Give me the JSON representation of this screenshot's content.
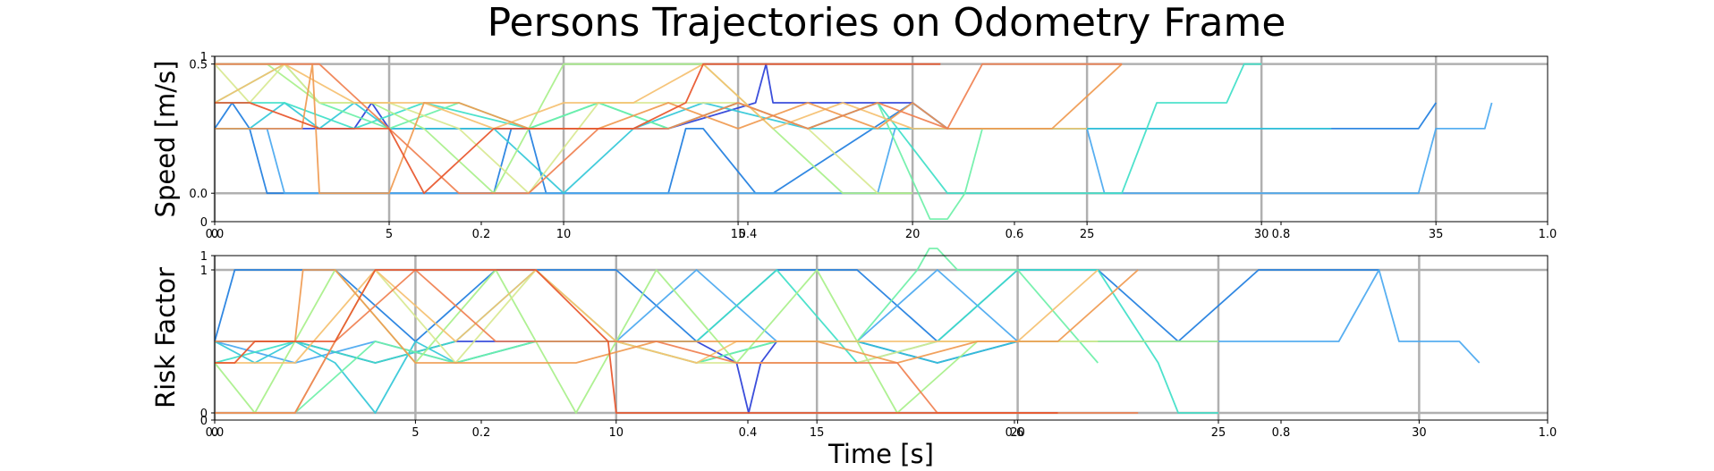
{
  "suptitle": "Persons Trajectories on Odometry Frame",
  "chart_data": [
    {
      "type": "line",
      "ylabel": "Speed [m/s]",
      "xlabel": "",
      "grid": true,
      "x_ticks": [
        "0",
        "5",
        "10",
        "15",
        "20",
        "25",
        "30",
        "35"
      ],
      "y_ticks": [
        "0.0",
        "0.5"
      ],
      "x_range": [
        0,
        38.2
      ],
      "y_range": [
        -0.11,
        0.53
      ],
      "twin_x_ticks": [
        "0.0",
        "0.2",
        "0.4",
        "0.6",
        "0.8",
        "1.0"
      ],
      "twin_y_ticks": [
        "0",
        "1"
      ],
      "series": [
        {
          "color": "#1f7ee0",
          "x": [
            0,
            0.5,
            1,
            1.5,
            2,
            8,
            8.5,
            9,
            9.5,
            13,
            13.5,
            14,
            15.5,
            16,
            20,
            21,
            24,
            24.5,
            25,
            34.5,
            35
          ],
          "y": [
            0.25,
            0.35,
            0.25,
            0,
            0,
            0,
            0.25,
            0.25,
            0,
            0,
            0.25,
            0.25,
            0,
            0,
            0.35,
            0.25,
            0.25,
            0.25,
            0.25,
            0.25,
            0.35
          ]
        },
        {
          "color": "#4aa8f0",
          "x": [
            0,
            1.5,
            2,
            3,
            3.5,
            10,
            10.5,
            19,
            19.5,
            20,
            25,
            25.5,
            26,
            27,
            28,
            30,
            34.5,
            35,
            36,
            36.4,
            36.6
          ],
          "y": [
            0.25,
            0.25,
            0,
            0,
            0,
            0,
            0,
            0,
            0.25,
            0.25,
            0.25,
            0,
            0,
            0,
            0,
            0,
            0,
            0.25,
            0.25,
            0.25,
            0.35
          ]
        },
        {
          "color": "#2a3fd8",
          "x": [
            0,
            4,
            4.5,
            5,
            7,
            8.5,
            9,
            13,
            15.5,
            15.8,
            16,
            20,
            21,
            22
          ],
          "y": [
            0.25,
            0.25,
            0.35,
            0.25,
            0.25,
            0.25,
            0.25,
            0.25,
            0.35,
            0.5,
            0.35,
            0.35,
            0.25,
            0.25
          ]
        },
        {
          "color": "#33c8d8",
          "x": [
            0,
            1,
            2,
            3,
            4,
            5,
            8,
            10,
            12,
            14,
            17,
            20,
            23,
            26,
            29,
            30,
            32
          ],
          "y": [
            0.25,
            0.25,
            0.35,
            0.25,
            0.35,
            0.25,
            0.25,
            0,
            0.25,
            0.35,
            0.25,
            0.25,
            0.25,
            0.25,
            0.25,
            0.25,
            0.25
          ]
        },
        {
          "color": "#3fe0c8",
          "x": [
            0,
            2,
            4,
            6,
            9,
            11,
            13,
            15,
            17,
            19,
            21,
            23,
            26,
            27,
            29,
            29.5,
            30
          ],
          "y": [
            0.35,
            0.35,
            0.25,
            0.35,
            0.25,
            0.35,
            0.25,
            0.35,
            0.25,
            0.35,
            0,
            0,
            0,
            0.35,
            0.35,
            0.5,
            0.5
          ]
        },
        {
          "color": "#6ef0a8",
          "x": [
            0,
            2,
            3,
            5,
            7,
            9,
            11,
            13,
            15,
            17,
            19,
            20.5,
            21,
            21.5,
            22,
            25
          ],
          "y": [
            0.35,
            0.5,
            0.35,
            0.25,
            0.35,
            0.25,
            0.35,
            0.25,
            0.35,
            0.25,
            0.35,
            -0.1,
            -0.1,
            0,
            0.25,
            0.25
          ]
        },
        {
          "color": "#a8f08a",
          "x": [
            0,
            1.5,
            3,
            4.5,
            6,
            8,
            10,
            12,
            14,
            16,
            18,
            20
          ],
          "y": [
            0.5,
            0.5,
            0.35,
            0.35,
            0.25,
            0,
            0.5,
            0.5,
            0.5,
            0.25,
            0,
            0
          ]
        },
        {
          "color": "#d8e890",
          "x": [
            0,
            1,
            2,
            3,
            5,
            7,
            9,
            11,
            13,
            15,
            17,
            19
          ],
          "y": [
            0.5,
            0.35,
            0.5,
            0.35,
            0.35,
            0.25,
            0,
            0.35,
            0.35,
            0.35,
            0.25,
            0
          ]
        },
        {
          "color": "#f5c070",
          "x": [
            0,
            2,
            4,
            6,
            8,
            10,
            12,
            14,
            16,
            18,
            20,
            22,
            25
          ],
          "y": [
            0.35,
            0.5,
            0.35,
            0.35,
            0.25,
            0.35,
            0.35,
            0.5,
            0.25,
            0.35,
            0.25,
            0.25,
            0.25
          ]
        },
        {
          "color": "#f09a50",
          "x": [
            0,
            2.5,
            2.8,
            3,
            5,
            6,
            7,
            9,
            11,
            13,
            15,
            17,
            19,
            20,
            21,
            24,
            26
          ],
          "y": [
            0.25,
            0.25,
            0.5,
            0,
            0,
            0.35,
            0.35,
            0.25,
            0.25,
            0.35,
            0.25,
            0.35,
            0.25,
            0.35,
            0.25,
            0.25,
            0.5
          ]
        },
        {
          "color": "#f08050",
          "x": [
            0,
            3,
            5,
            7,
            9,
            11,
            13,
            15,
            17,
            19,
            21,
            22,
            24,
            26
          ],
          "y": [
            0.5,
            0.5,
            0.25,
            0,
            0,
            0.25,
            0.25,
            0.35,
            0.25,
            0.35,
            0.25,
            0.5,
            0.5,
            0.5
          ]
        },
        {
          "color": "#e8552a",
          "x": [
            0,
            1,
            3,
            4.5,
            5,
            6,
            8,
            10,
            12,
            13.5,
            14,
            16,
            18,
            20,
            20.8
          ],
          "y": [
            0.35,
            0.35,
            0.25,
            0.25,
            0.25,
            0,
            0.25,
            0.25,
            0.25,
            0.35,
            0.5,
            0.5,
            0.5,
            0.5,
            0.5
          ]
        }
      ]
    },
    {
      "type": "line",
      "ylabel": "Risk Factor",
      "xlabel": "Time [s]",
      "grid": true,
      "x_ticks": [
        "0",
        "5",
        "10",
        "15",
        "20",
        "25",
        "30"
      ],
      "y_ticks": [
        "0",
        "1"
      ],
      "x_range": [
        0,
        33.2
      ],
      "y_range": [
        -0.05,
        1.1
      ],
      "twin_x_ticks": [
        "0.0",
        "0.2",
        "0.4",
        "0.6",
        "0.8",
        "1.0"
      ],
      "twin_y_ticks": [
        "0",
        "1"
      ],
      "series": [
        {
          "color": "#1f7ee0",
          "x": [
            0,
            0.5,
            1,
            3,
            5,
            7,
            10,
            12,
            14,
            16,
            18,
            20,
            22,
            24,
            26,
            28,
            29
          ],
          "y": [
            0.5,
            1,
            1,
            1,
            0.5,
            1,
            1,
            0.5,
            1,
            1,
            0.5,
            1,
            1,
            0.5,
            1,
            1,
            1
          ]
        },
        {
          "color": "#4aa8f0",
          "x": [
            0,
            2,
            4,
            6,
            8,
            10,
            12,
            14,
            16,
            18,
            20,
            22,
            24,
            26,
            28,
            29,
            29.5,
            30,
            31,
            31.5
          ],
          "y": [
            0.5,
            0.35,
            0.5,
            0.35,
            0.5,
            0.5,
            1,
            0.5,
            0.5,
            1,
            0.5,
            0.5,
            0.5,
            0.5,
            0.5,
            1,
            0.5,
            0.5,
            0.5,
            0.35
          ]
        },
        {
          "color": "#2a3fd8",
          "x": [
            0,
            2,
            4,
            6,
            8,
            10,
            12,
            13,
            13.3,
            13.6,
            14,
            16,
            18,
            20
          ],
          "y": [
            0.5,
            0.5,
            0.35,
            0.5,
            0.5,
            0.5,
            0.5,
            0.35,
            0,
            0.35,
            0.5,
            0.5,
            0.35,
            0.5
          ]
        },
        {
          "color": "#33c8d8",
          "x": [
            0,
            1,
            2,
            3,
            4,
            5,
            6,
            8,
            10,
            12,
            14,
            16,
            18,
            20,
            22
          ],
          "y": [
            0.5,
            0.35,
            0.5,
            0.35,
            0,
            0.5,
            0.35,
            0.5,
            0.5,
            0.35,
            0.5,
            0.5,
            0.35,
            0.5,
            0.5
          ]
        },
        {
          "color": "#3fe0c8",
          "x": [
            0,
            2,
            4,
            6,
            8,
            10,
            12,
            14,
            16,
            18,
            20,
            22,
            23.5,
            24,
            25
          ],
          "y": [
            0.35,
            0.5,
            0.35,
            0.5,
            1,
            0.5,
            0.5,
            1,
            0.35,
            0.5,
            1,
            1,
            0.35,
            0,
            0
          ]
        },
        {
          "color": "#6ef0a8",
          "x": [
            0,
            2,
            4,
            6,
            8,
            10,
            12,
            14,
            16,
            17.5,
            17.8,
            18,
            18.5,
            20,
            22
          ],
          "y": [
            0,
            0,
            0.5,
            0.35,
            0.5,
            0.5,
            0.35,
            0.5,
            0.5,
            1,
            1.15,
            1.15,
            1,
            1,
            0.35
          ]
        },
        {
          "color": "#a8f08a",
          "x": [
            0,
            1,
            3,
            5,
            7,
            9,
            11,
            13,
            15,
            17,
            19,
            21,
            22,
            25
          ],
          "y": [
            0.35,
            0,
            1,
            0.35,
            1,
            0,
            1,
            0.35,
            1,
            0,
            0.5,
            0.5,
            0.5,
            0.5
          ]
        },
        {
          "color": "#d8e890",
          "x": [
            0,
            2,
            4,
            6,
            8,
            10,
            12,
            14,
            16,
            18,
            20,
            22
          ],
          "y": [
            0,
            0,
            1,
            0.35,
            1,
            0.5,
            0.35,
            0.35,
            0.35,
            0.5,
            0.5,
            0.5
          ]
        },
        {
          "color": "#f5c070",
          "x": [
            0,
            2,
            4,
            6,
            8,
            10,
            12,
            13,
            14,
            16,
            18,
            20,
            22
          ],
          "y": [
            0.35,
            0.35,
            1,
            0.5,
            1,
            0.5,
            0.35,
            0.5,
            0.5,
            0.5,
            0.5,
            0.5,
            1
          ]
        },
        {
          "color": "#f09a50",
          "x": [
            0,
            2,
            2.2,
            3,
            5,
            7,
            9,
            11,
            13,
            15,
            17,
            19,
            21,
            23
          ],
          "y": [
            0.5,
            0.5,
            1,
            1,
            0.35,
            0.35,
            0.35,
            0.5,
            0.5,
            0.5,
            0.35,
            0.5,
            0.5,
            1
          ]
        },
        {
          "color": "#f08050",
          "x": [
            0,
            2,
            3,
            5,
            7,
            9,
            11,
            13,
            15,
            17,
            18,
            20,
            22,
            23
          ],
          "y": [
            0,
            0,
            0.5,
            1,
            0.5,
            0.5,
            0.5,
            0.35,
            0.35,
            0.35,
            0,
            0,
            0,
            0
          ]
        },
        {
          "color": "#e8552a",
          "x": [
            0,
            0.5,
            1,
            2,
            3,
            4,
            6,
            8,
            9.8,
            10,
            11,
            13,
            15,
            17,
            19,
            21
          ],
          "y": [
            0.35,
            0.35,
            0.5,
            0.5,
            0.5,
            1,
            1,
            1,
            0.5,
            0,
            0,
            0,
            0,
            0,
            0,
            0
          ]
        }
      ]
    }
  ]
}
